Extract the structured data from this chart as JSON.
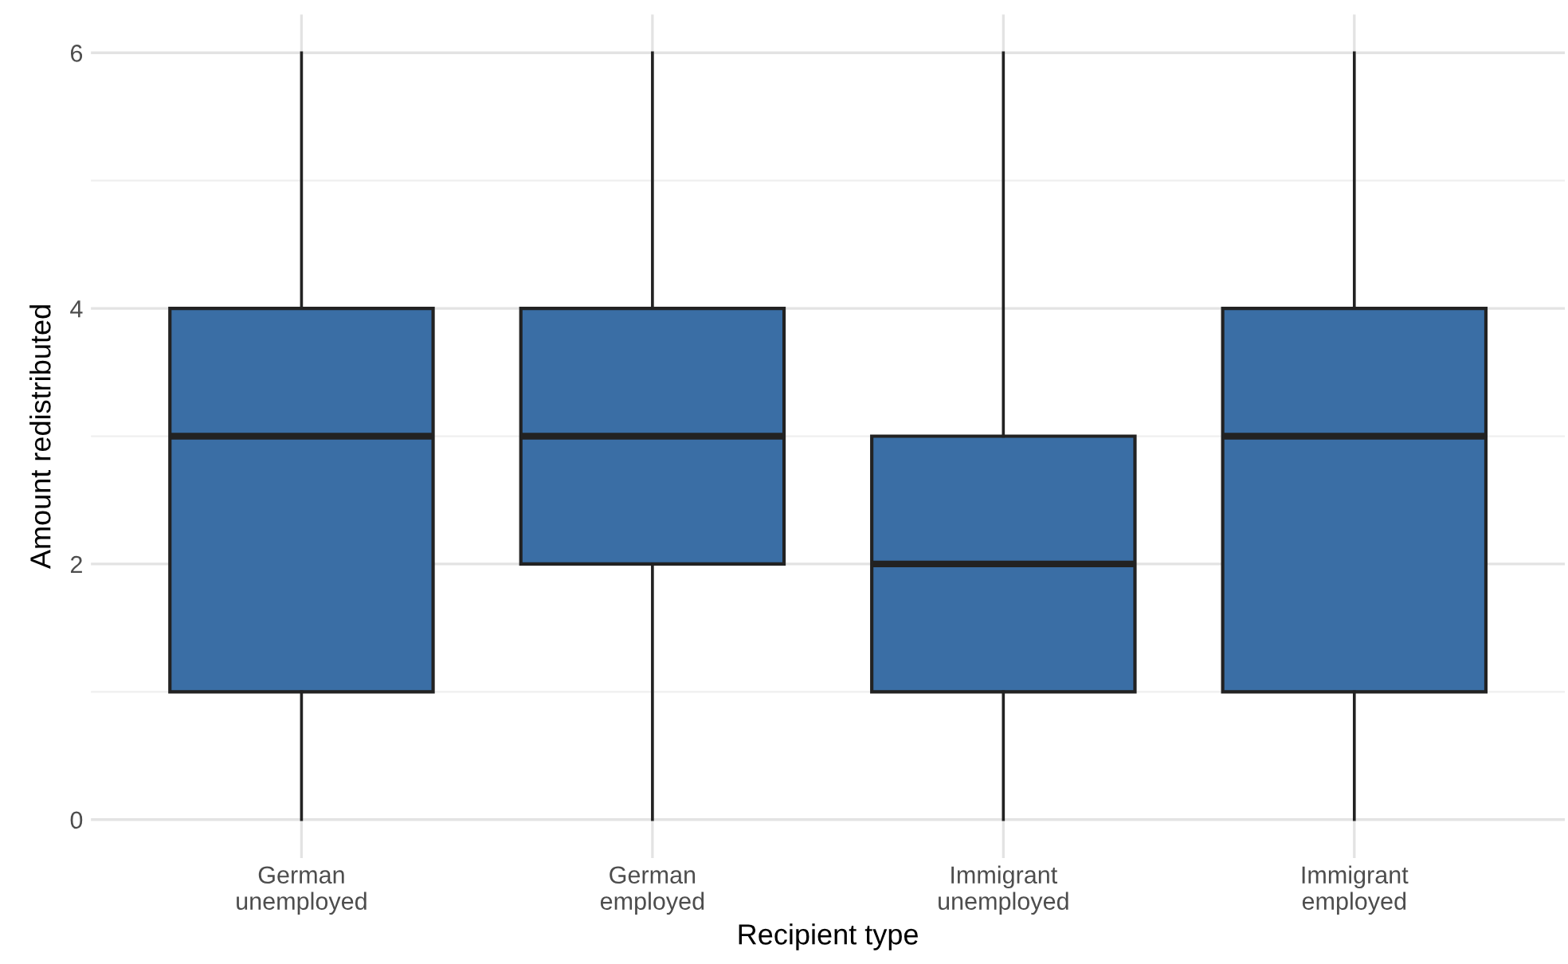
{
  "chart_data": {
    "type": "box",
    "xlabel": "Recipient type",
    "ylabel": "Amount redistributed",
    "categories": [
      "German\nunemployed",
      "German\nemployed",
      "Immigrant\nunemployed",
      "Immigrant\nemployed"
    ],
    "boxes": [
      {
        "low": 0,
        "q1": 1,
        "median": 3,
        "q3": 4,
        "high": 6
      },
      {
        "low": 0,
        "q1": 2,
        "median": 3,
        "q3": 4,
        "high": 6
      },
      {
        "low": 0,
        "q1": 1,
        "median": 2,
        "q3": 3,
        "high": 6
      },
      {
        "low": 0,
        "q1": 1,
        "median": 3,
        "q3": 4,
        "high": 6
      }
    ],
    "color": "#3a6ea5",
    "ylim": [
      -0.3,
      6.3
    ],
    "yticks": [
      0,
      2,
      4,
      6
    ],
    "grid": true,
    "legend": false
  }
}
